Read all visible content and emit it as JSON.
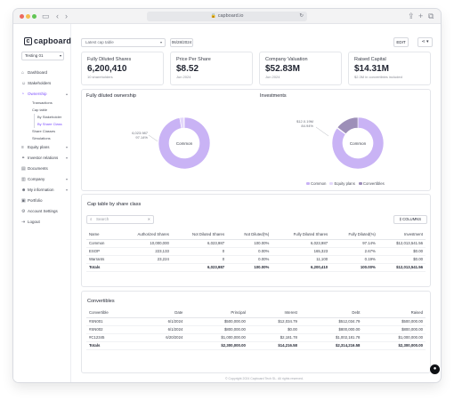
{
  "browser": {
    "url": "capboard.io"
  },
  "brand": {
    "logo_letter": "c",
    "name": "capboard"
  },
  "org_selector": {
    "label": "Testing 01"
  },
  "nav": {
    "items": [
      {
        "label": "Dashboard",
        "icon": "home-icon"
      },
      {
        "label": "Stakeholders",
        "icon": "users-icon"
      },
      {
        "label": "Ownership",
        "icon": "pie-chart-icon",
        "active": true
      },
      {
        "label": "Equity plans",
        "icon": "layers-icon"
      },
      {
        "label": "Investor relations",
        "icon": "handshake-icon"
      },
      {
        "label": "Documents",
        "icon": "document-icon"
      },
      {
        "label": "Company",
        "icon": "building-icon"
      },
      {
        "label": "My information",
        "icon": "user-icon"
      },
      {
        "label": "Portfolio",
        "icon": "briefcase-icon"
      },
      {
        "label": "Account Settings",
        "icon": "gear-icon"
      },
      {
        "label": "Logout",
        "icon": "logout-icon"
      }
    ],
    "ownership_sub": [
      "Transactions",
      "Cap table",
      "Share Classes",
      "Simulations"
    ],
    "cap_table_sub": [
      "By Stakeholder",
      "By Share Class"
    ]
  },
  "toolbar": {
    "cap_table_select": "Latest cap table",
    "date": "06/28/2024",
    "edit_label": "EDIT",
    "share_icon": "share-icon"
  },
  "stats": [
    {
      "label": "Fully Diluted Shares",
      "value": "6,200,410",
      "sub": "10 shareholders"
    },
    {
      "label": "Price Per Share",
      "value": "$8.52",
      "sub": "Jun 2024"
    },
    {
      "label": "Company Valuation",
      "value": "$52.83M",
      "sub": "Jun 2024"
    },
    {
      "label": "Raised Capital",
      "value": "$14.31M",
      "sub": "$2.3M in convertibles included"
    }
  ],
  "charts": {
    "ownership_title": "Fully diluted ownership",
    "investments_title": "Investments",
    "ownership_callout_value": "6,023.987",
    "ownership_callout_pct": "97.14%",
    "ownership_center": "Common",
    "investments_callout_value": "$12.0.19M",
    "investments_callout_pct": "84.94%",
    "investments_center": "Common",
    "legend": [
      "Common",
      "Equity plans",
      "Convertibles"
    ]
  },
  "chart_data": [
    {
      "type": "pie",
      "title": "Fully diluted ownership",
      "labels": [
        "Common",
        "Equity plans",
        "Convertibles"
      ],
      "values": [
        97.14,
        2.67,
        0.19
      ],
      "colors": [
        "#c9b3f5",
        "#e4d8fb",
        "#9d8fb8"
      ]
    },
    {
      "type": "pie",
      "title": "Investments",
      "labels": [
        "Common",
        "Equity plans",
        "Convertibles"
      ],
      "values": [
        84.94,
        0.5,
        14.56
      ],
      "colors": [
        "#c9b3f5",
        "#e4d8fb",
        "#9d8fb8"
      ]
    }
  ],
  "share_class_table": {
    "title": "Cap table by share class",
    "search_placeholder": "Search",
    "columns_button": "COLUMNS",
    "headers": [
      "Name",
      "Authorized Shares",
      "Not Diluted Shares",
      "Not Diluted(%)",
      "Fully Diluted Shares",
      "Fully Diluted(%)",
      "Investment"
    ],
    "rows": [
      [
        "Common",
        "10,000,000",
        "6,023,987",
        "100.00%",
        "6,023,987",
        "97.14%",
        "$12,013,541.56"
      ],
      [
        "ESOP",
        "223,133",
        "0",
        "0.00%",
        "165,323",
        "2.67%",
        "$0.00"
      ],
      [
        "Warrants",
        "23,224",
        "0",
        "0.00%",
        "11,100",
        "0.19%",
        "$0.00"
      ]
    ],
    "total": [
      "Totals",
      "",
      "6,023,987",
      "100.00%",
      "6,200,410",
      "100.00%",
      "$12,013,541.56"
    ]
  },
  "convertibles_table": {
    "title": "Convertibles",
    "headers": [
      "Convertible",
      "Date",
      "Principal",
      "Interest",
      "Debt",
      "Raised"
    ],
    "rows": [
      [
        "#SN001",
        "6/1/2024",
        "$500,000.00",
        "$12,034.79",
        "$512,034.79",
        "$500,000.00"
      ],
      [
        "#SN002",
        "6/1/2024",
        "$800,000.00",
        "$0.00",
        "$800,000.00",
        "$800,000.00"
      ],
      [
        "#C12345",
        "6/20/2024",
        "$1,000,000.00",
        "$2,181.78",
        "$1,002,181.78",
        "$1,000,000.00"
      ]
    ],
    "total": [
      "Totals",
      "",
      "$2,300,000.00",
      "$14,216.58",
      "$2,314,216.58",
      "$2,300,000.00"
    ]
  },
  "footer": {
    "text": "© Copyright 2024 Capboard Tech SL. All rights reserved."
  },
  "chat": {
    "icon": "chat-icon"
  }
}
